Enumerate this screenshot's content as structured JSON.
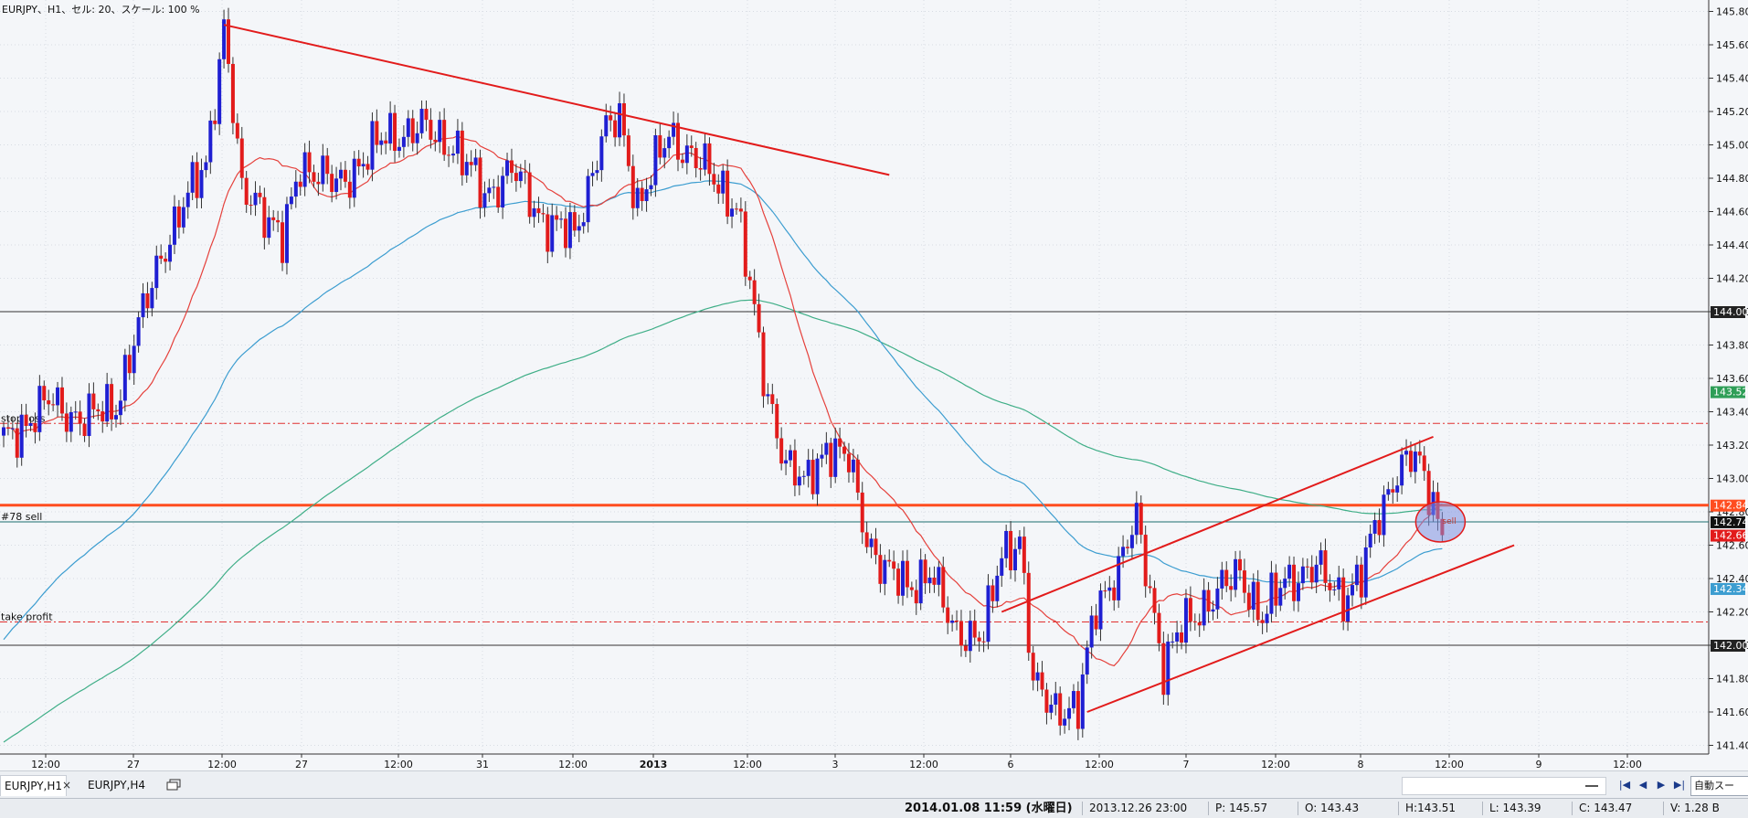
{
  "window": {
    "chart_info": "EURJPY、H1、セル: 20、スケール: 100 %"
  },
  "colors": {
    "background": "#f4f6f9",
    "grid": "#d7dce3",
    "bull_candle": "#1f1fd2",
    "bear_candle": "#e21b1b",
    "ma_fast": "#e5403b",
    "ma_mid": "#3c9dd0",
    "ma_slow": "#3fae87",
    "trendline": "#e21b1b",
    "order_line": "#ff4d1f"
  },
  "chart_data": {
    "type": "candlestick",
    "symbol": "EURJPY",
    "timeframe": "H1",
    "ylim": [
      141.3,
      145.85
    ],
    "y_ticks": [
      "145.80",
      "145.60",
      "145.40",
      "145.20",
      "145.00",
      "144.80",
      "144.60",
      "144.40",
      "144.20",
      "144.00",
      "143.80",
      "143.60",
      "143.40",
      "143.20",
      "143.00",
      "142.80",
      "142.60",
      "142.40",
      "142.20",
      "142.00",
      "141.80",
      "141.60",
      "141.40"
    ],
    "x_ticks": [
      "12:00",
      "27",
      "12:00",
      "27",
      "12:00",
      "31",
      "12:00",
      "2013",
      "12:00",
      "3",
      "12:00",
      "6",
      "12:00",
      "7",
      "12:00",
      "8",
      "12:00",
      "9",
      "12:00"
    ],
    "horizontal_levels": [
      {
        "price": 144.0,
        "label": "144.00",
        "style": "solid"
      },
      {
        "price": 142.0,
        "label": "142.00",
        "style": "solid"
      },
      {
        "price": 143.33,
        "label": "stop loss",
        "style": "dashdot"
      },
      {
        "price": 142.14,
        "label": "take profit",
        "style": "dashdot"
      },
      {
        "price": 142.74,
        "label": "#78 sell",
        "style": "solid"
      },
      {
        "price": 142.84,
        "label": "",
        "style": "thick"
      }
    ],
    "price_badges": [
      {
        "price": 142.84,
        "label": "142.84",
        "color": "#ff4d1f"
      },
      {
        "price": 142.74,
        "label": "142.74",
        "color": "#111111"
      },
      {
        "price": 142.66,
        "label": "142.66",
        "color": "#e21b1b"
      },
      {
        "price": 143.52,
        "label": "143.52",
        "color": "#2e9e57"
      },
      {
        "price": 142.34,
        "label": "142.34",
        "color": "#3c9dd0"
      }
    ],
    "order_marker": "sell",
    "anchors": [
      [
        0,
        143.22
      ],
      [
        10,
        143.46
      ],
      [
        18,
        143.35
      ],
      [
        25,
        143.45
      ],
      [
        35,
        144.35
      ],
      [
        45,
        144.9
      ],
      [
        49,
        145.7
      ],
      [
        53,
        144.7
      ],
      [
        56,
        144.7
      ],
      [
        62,
        144.4
      ],
      [
        66,
        144.9
      ],
      [
        74,
        144.75
      ],
      [
        85,
        145.05
      ],
      [
        93,
        145.1
      ],
      [
        100,
        145.0
      ],
      [
        107,
        144.7
      ],
      [
        113,
        144.85
      ],
      [
        120,
        144.55
      ],
      [
        127,
        144.45
      ],
      [
        133,
        145.05
      ],
      [
        137,
        145.15
      ],
      [
        141,
        144.65
      ],
      [
        148,
        145.05
      ],
      [
        153,
        144.95
      ],
      [
        159,
        144.75
      ],
      [
        163,
        144.65
      ],
      [
        166,
        144.15
      ],
      [
        169,
        143.6
      ],
      [
        174,
        143.1
      ],
      [
        178,
        142.95
      ],
      [
        183,
        143.2
      ],
      [
        188,
        143.1
      ],
      [
        192,
        142.65
      ],
      [
        196,
        142.45
      ],
      [
        201,
        142.35
      ],
      [
        206,
        142.45
      ],
      [
        211,
        142.1
      ],
      [
        218,
        142.05
      ],
      [
        222,
        142.55
      ],
      [
        226,
        142.65
      ],
      [
        229,
        141.75
      ],
      [
        233,
        141.65
      ],
      [
        239,
        141.6
      ],
      [
        243,
        142.25
      ],
      [
        248,
        142.45
      ],
      [
        252,
        142.75
      ],
      [
        255,
        142.35
      ],
      [
        258,
        141.85
      ],
      [
        262,
        142.1
      ],
      [
        265,
        142.2
      ],
      [
        270,
        142.3
      ],
      [
        275,
        142.45
      ],
      [
        280,
        142.15
      ],
      [
        285,
        142.4
      ],
      [
        292,
        142.45
      ],
      [
        298,
        142.3
      ],
      [
        302,
        142.4
      ],
      [
        306,
        142.8
      ],
      [
        310,
        143.05
      ],
      [
        314,
        143.12
      ],
      [
        318,
        142.88
      ],
      [
        320,
        142.66
      ]
    ],
    "trendlines": [
      {
        "from": [
          49,
          145.72
        ],
        "to": [
          197,
          144.82
        ]
      },
      {
        "from": [
          222,
          142.2
        ],
        "to": [
          318,
          143.25
        ]
      },
      {
        "from": [
          241,
          141.6
        ],
        "to": [
          336,
          142.6
        ]
      }
    ]
  },
  "tabs": [
    {
      "label": "EURJPY,H1",
      "active": true
    },
    {
      "label": "EURJPY,H4",
      "active": false
    }
  ],
  "tab_close": "×",
  "toolbar": {
    "nav_buttons": [
      "|◀",
      "◀",
      "▶",
      "▶|"
    ],
    "auto_scroll": "自動スー"
  },
  "status": {
    "datetime": "2014.01.08 11:59 (水曜日)",
    "bar_time": "2013.12.26 23:00",
    "price": "P: 145.57",
    "open": "O: 143.43",
    "high": "H:143.51",
    "low": "L: 143.39",
    "close": "C: 143.47",
    "volume": "V: 1.28 B"
  }
}
